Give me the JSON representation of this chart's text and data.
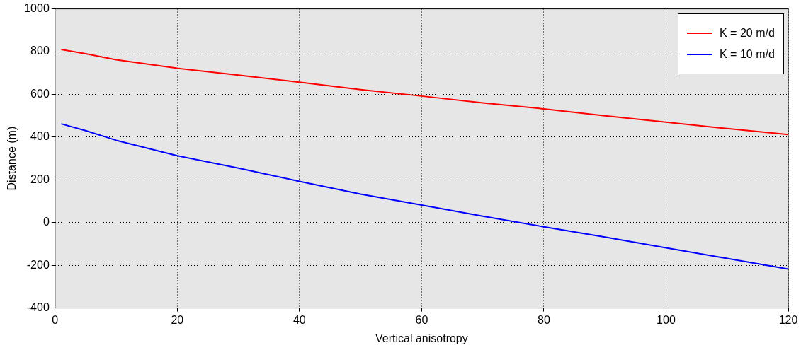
{
  "chart_data": {
    "type": "line",
    "xlabel": "Vertical anisotropy",
    "ylabel": "Distance (m)",
    "xlim": [
      0,
      120
    ],
    "xticks": [
      0,
      20,
      40,
      60,
      80,
      100,
      120
    ],
    "ylim": [
      -400,
      1000
    ],
    "yticks": [
      -400,
      -200,
      0,
      200,
      400,
      600,
      800,
      1000
    ],
    "grid": true,
    "legend": "top right",
    "marker": "none",
    "line_style": "solid",
    "series": [
      {
        "name": "K = 20 m/d",
        "color": "#ff0000",
        "x": [
          1,
          5,
          10,
          20,
          30,
          40,
          50,
          60,
          70,
          80,
          90,
          100,
          110,
          120
        ],
        "values": [
          810,
          790,
          762,
          722,
          690,
          657,
          622,
          592,
          560,
          532,
          500,
          470,
          440,
          412
        ]
      },
      {
        "name": "K = 10 m/d",
        "color": "#0000ff",
        "x": [
          1,
          5,
          10,
          20,
          30,
          40,
          50,
          60,
          70,
          80,
          90,
          100,
          110,
          120
        ],
        "values": [
          462,
          430,
          385,
          313,
          255,
          193,
          133,
          82,
          30,
          -20,
          -68,
          -118,
          -168,
          -218
        ]
      }
    ]
  }
}
